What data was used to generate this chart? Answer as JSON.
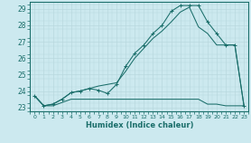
{
  "bg_color": "#cce9ef",
  "grid_color": "#b8d8de",
  "line_color": "#1a6e6a",
  "x_min": 0,
  "x_max": 23,
  "y_min": 22.75,
  "y_max": 29.45,
  "ylabel_ticks": [
    23,
    24,
    25,
    26,
    27,
    28,
    29
  ],
  "xlabel": "Humidex (Indice chaleur)",
  "line_flat_x": [
    0,
    1,
    2,
    3,
    4,
    5,
    6,
    7,
    8,
    9,
    10,
    11,
    12,
    13,
    14,
    15,
    16,
    17,
    18,
    19,
    20,
    21,
    22,
    23
  ],
  "line_flat_y": [
    23.7,
    23.1,
    23.1,
    23.3,
    23.5,
    23.5,
    23.5,
    23.5,
    23.5,
    23.5,
    23.5,
    23.5,
    23.5,
    23.5,
    23.5,
    23.5,
    23.5,
    23.5,
    23.5,
    23.2,
    23.2,
    23.1,
    23.1,
    23.1
  ],
  "line_smooth_x": [
    0,
    1,
    2,
    3,
    4,
    5,
    6,
    7,
    8,
    9,
    10,
    11,
    12,
    13,
    14,
    15,
    16,
    17,
    18,
    19,
    20,
    21,
    22,
    23
  ],
  "line_smooth_y": [
    23.7,
    23.1,
    23.2,
    23.5,
    23.9,
    24.0,
    24.15,
    24.3,
    24.4,
    24.5,
    25.2,
    26.0,
    26.6,
    27.2,
    27.65,
    28.2,
    28.8,
    29.1,
    27.9,
    27.5,
    26.8,
    26.8,
    26.8,
    23.1
  ],
  "line_marker_x": [
    0,
    1,
    2,
    3,
    4,
    5,
    6,
    7,
    8,
    9,
    10,
    11,
    12,
    13,
    14,
    15,
    16,
    17,
    18,
    19,
    20,
    21,
    22,
    23
  ],
  "line_marker_y": [
    23.7,
    23.1,
    23.2,
    23.5,
    23.9,
    24.0,
    24.15,
    24.05,
    23.85,
    24.4,
    25.5,
    26.3,
    26.8,
    27.5,
    28.0,
    28.85,
    29.2,
    29.2,
    29.2,
    28.2,
    27.5,
    26.8,
    26.8,
    23.1
  ]
}
